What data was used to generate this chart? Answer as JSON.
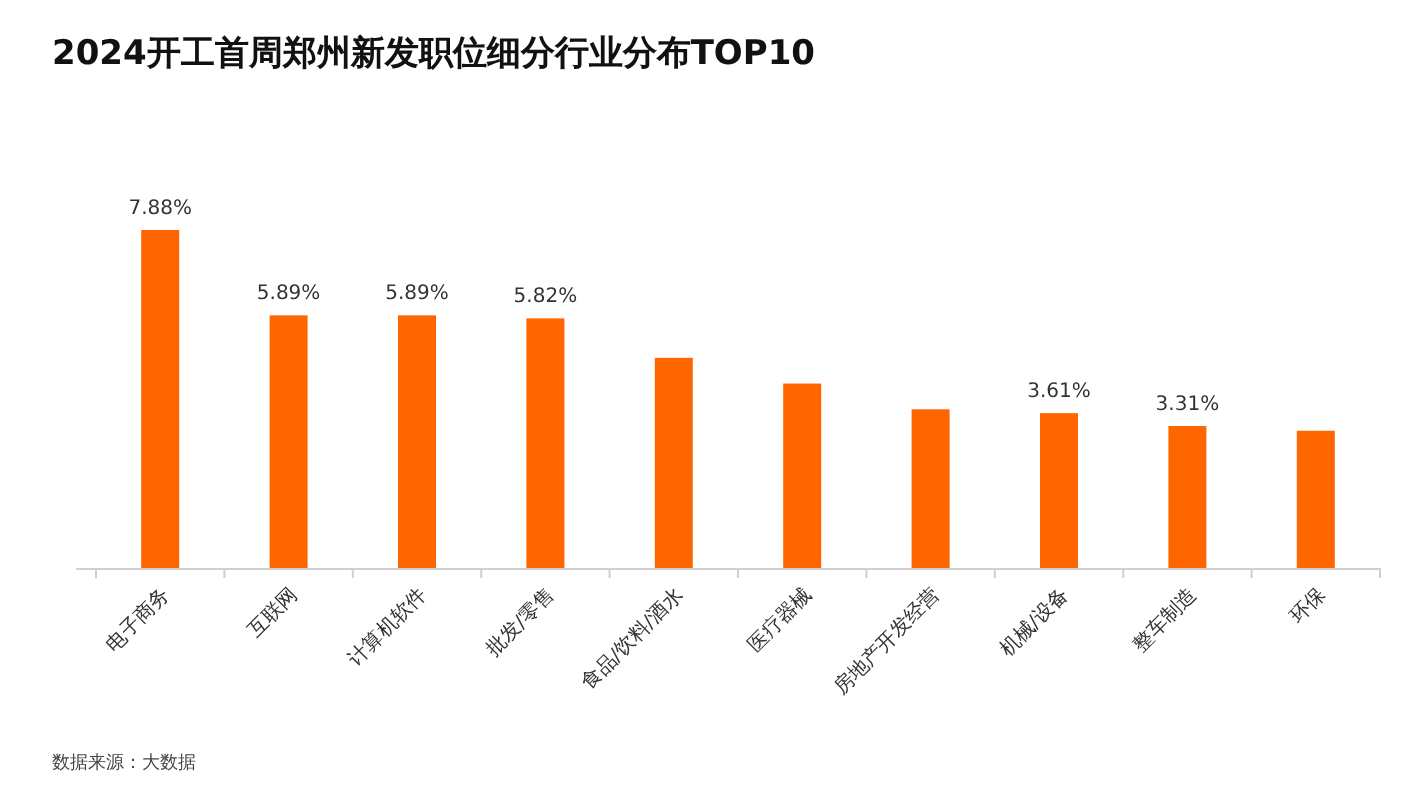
{
  "chart_data": {
    "type": "bar",
    "title": "2024开工首周郑州新发职位细分行业分布TOP10",
    "categories": [
      "电子商务",
      "互联网",
      "计算机软件",
      "批发/零售",
      "食品/饮料/酒水",
      "医疗器械",
      "房地产开发经营",
      "机械/设备",
      "整车制造",
      "环保"
    ],
    "values": [
      7.88,
      5.89,
      5.89,
      5.82,
      4.9,
      4.3,
      3.7,
      3.61,
      3.31,
      3.2
    ],
    "value_labels": [
      "7.88%",
      "5.89%",
      "5.89%",
      "5.82%",
      null,
      null,
      null,
      "3.61%",
      "3.31%",
      null
    ],
    "color": "#ff6600",
    "annotations": [
      "数据来源：大数据"
    ]
  }
}
